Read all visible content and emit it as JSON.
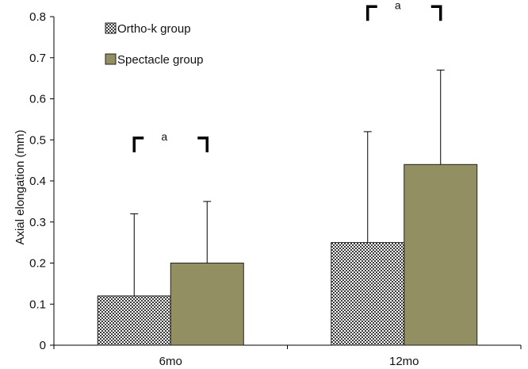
{
  "chart_data": {
    "type": "bar",
    "categories": [
      "6mo",
      "12mo"
    ],
    "ylabel": "Axial elongation (mm)",
    "ylim": [
      0,
      0.8
    ],
    "yticks": [
      "0",
      "0.1",
      "0.2",
      "0.3",
      "0.4",
      "0.5",
      "0.6",
      "0.7",
      "0.8"
    ],
    "grid": false,
    "legend_position": "top-left",
    "series": [
      {
        "name": "Ortho-k group",
        "values": [
          0.12,
          0.25
        ],
        "error_plus": [
          0.2,
          0.27
        ],
        "fill": "hatched",
        "color": "#3a3a3a"
      },
      {
        "name": "Spectacle group",
        "values": [
          0.2,
          0.44
        ],
        "error_plus": [
          0.15,
          0.23
        ],
        "fill": "solid",
        "color": "#928f62"
      }
    ],
    "annotations": [
      {
        "category": "6mo",
        "label": "a"
      },
      {
        "category": "12mo",
        "label": "a"
      }
    ]
  }
}
